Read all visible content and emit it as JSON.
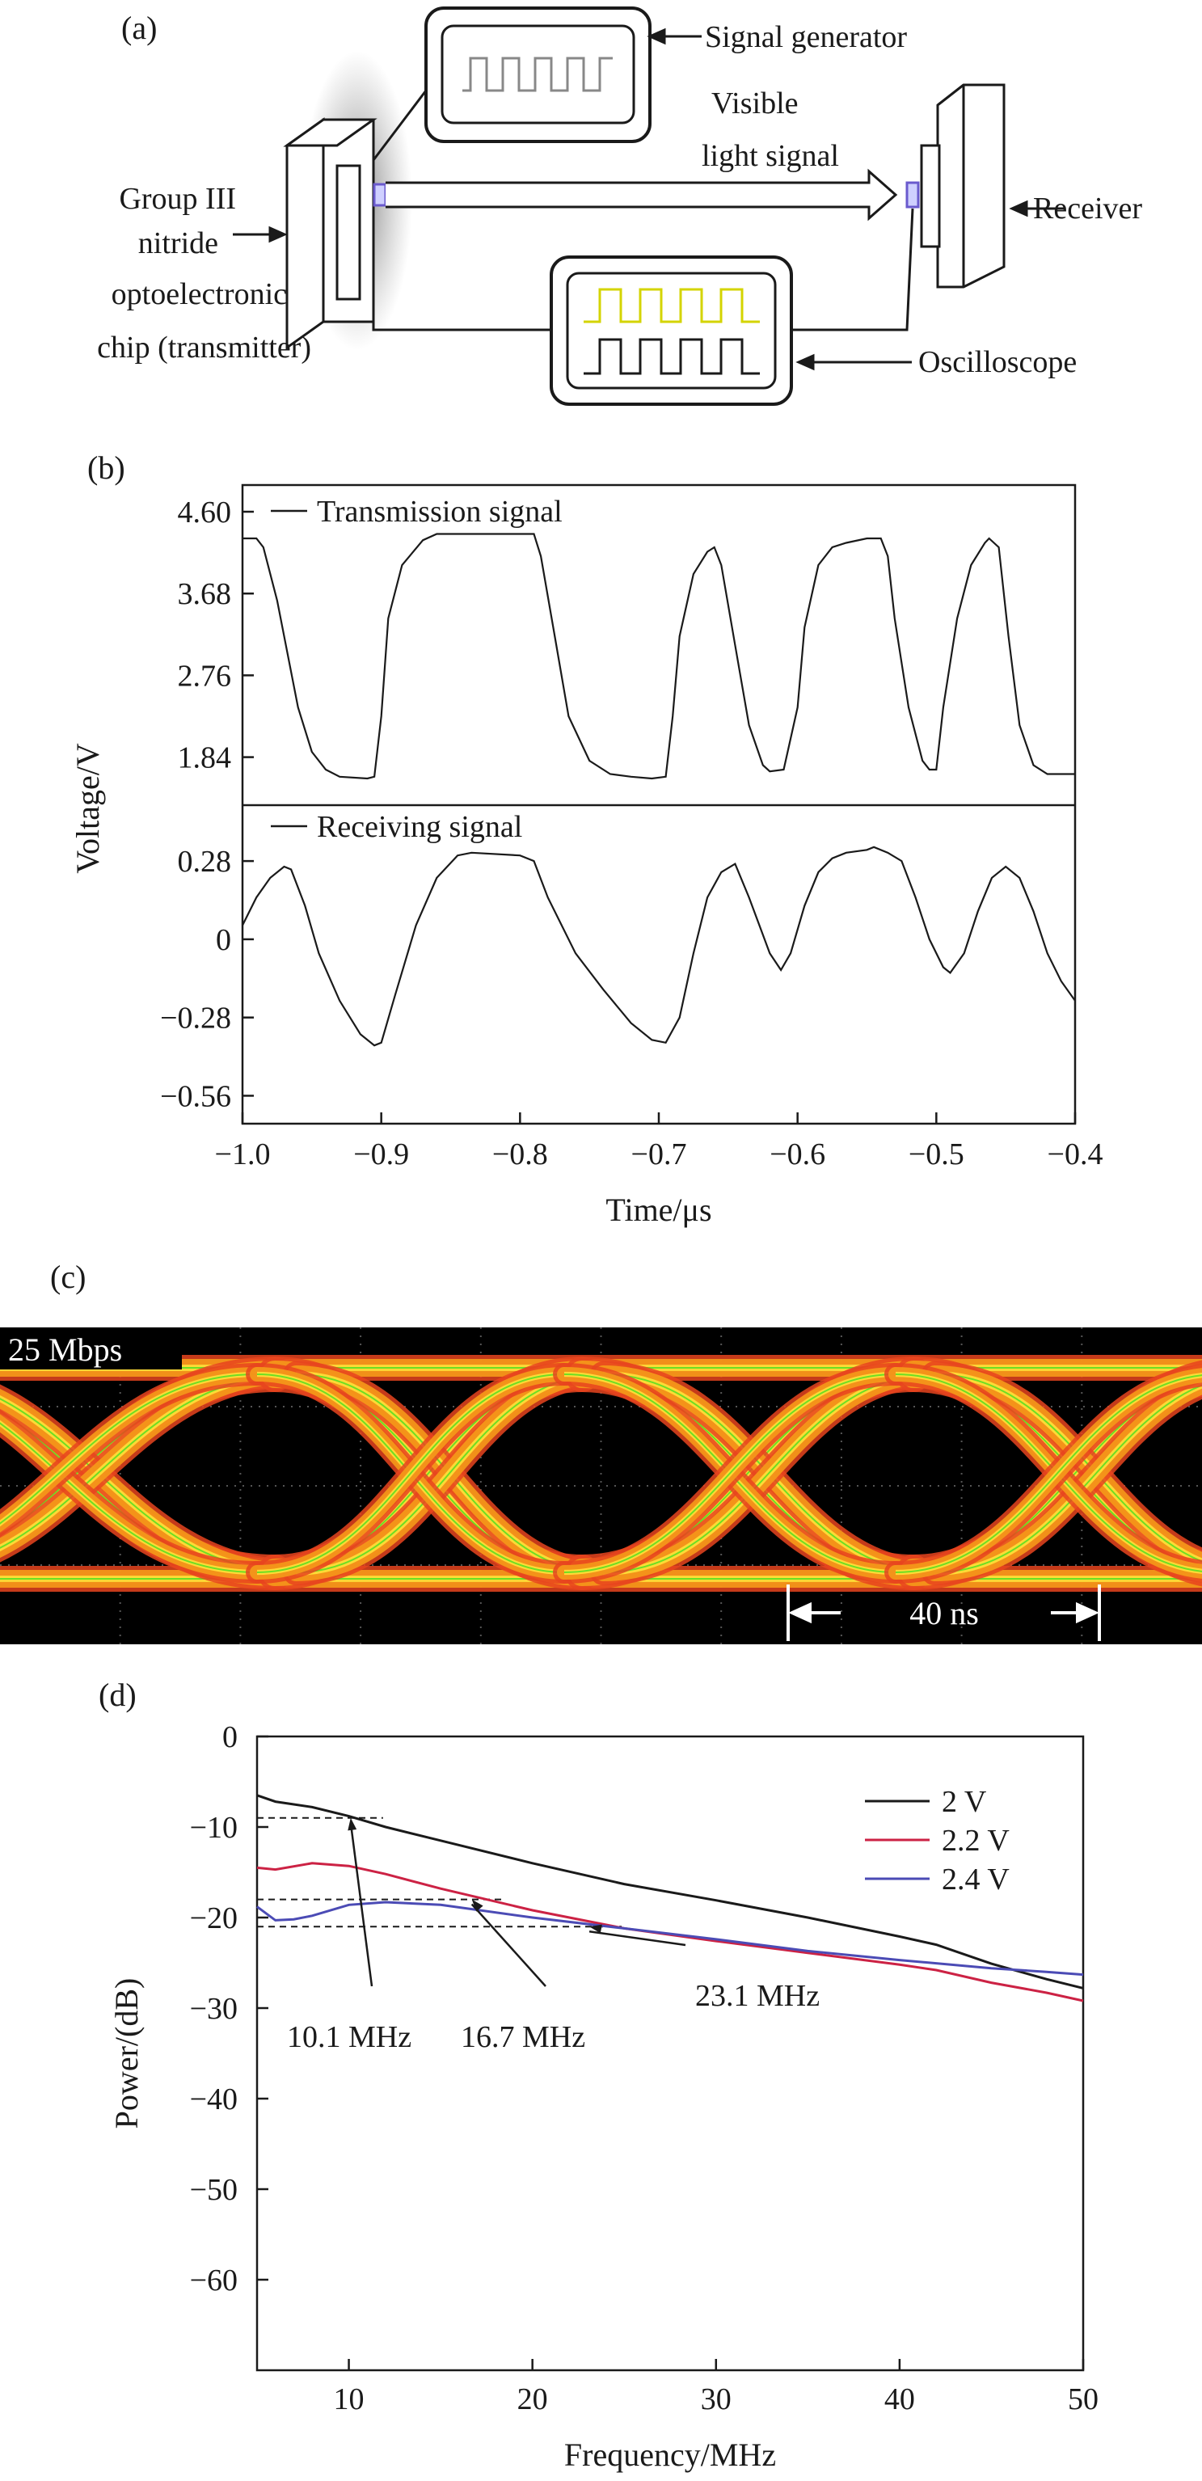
{
  "panel_a": {
    "label": "(a)",
    "signal_generator": "Signal generator",
    "visible_light_line1": "Visible",
    "visible_light_line2": "light signal",
    "receiver": "Receiver",
    "chip_line1": "Group III",
    "chip_line2": "nitride",
    "chip_line3": "optoelectronic",
    "chip_line4": "chip (transmitter)",
    "oscilloscope": "Oscilloscope",
    "colors": {
      "line": "#1a1a1a",
      "led": "#6a5acd",
      "trace_yellow": "#d4d400"
    }
  },
  "chart_data": [
    {
      "type": "line",
      "panel_label": "(b)",
      "xlabel": "Time/μs",
      "ylabel": "Voltage/V",
      "xlim": [
        -1.0,
        -0.4
      ],
      "x_ticks": [
        "−1.0",
        "−0.9",
        "−0.8",
        "−0.7",
        "−0.6",
        "−0.5",
        "−0.4"
      ],
      "subplots": [
        {
          "legend": "Transmission signal",
          "ylim": [
            1.3,
            4.9
          ],
          "y_ticks": [
            "4.60",
            "3.68",
            "2.76",
            "1.84"
          ],
          "y_tick_values": [
            4.6,
            3.68,
            2.76,
            1.84
          ],
          "series": [
            {
              "name": "Transmission signal",
              "x": [
                -1.0,
                -0.99,
                -0.985,
                -0.975,
                -0.96,
                -0.95,
                -0.94,
                -0.93,
                -0.91,
                -0.905,
                -0.9,
                -0.895,
                -0.885,
                -0.87,
                -0.86,
                -0.84,
                -0.8,
                -0.79,
                -0.785,
                -0.775,
                -0.765,
                -0.75,
                -0.735,
                -0.72,
                -0.705,
                -0.695,
                -0.69,
                -0.685,
                -0.675,
                -0.665,
                -0.66,
                -0.655,
                -0.645,
                -0.635,
                -0.625,
                -0.62,
                -0.61,
                -0.6,
                -0.595,
                -0.585,
                -0.575,
                -0.565,
                -0.55,
                -0.54,
                -0.535,
                -0.53,
                -0.52,
                -0.51,
                -0.505,
                -0.5,
                -0.495,
                -0.485,
                -0.475,
                -0.465,
                -0.462,
                -0.455,
                -0.448,
                -0.44,
                -0.43,
                -0.42,
                -0.41,
                -0.4
              ],
              "values": [
                4.3,
                4.3,
                4.2,
                3.6,
                2.4,
                1.9,
                1.7,
                1.62,
                1.6,
                1.62,
                2.3,
                3.4,
                4.0,
                4.28,
                4.35,
                4.35,
                4.35,
                4.35,
                4.1,
                3.2,
                2.3,
                1.8,
                1.65,
                1.62,
                1.6,
                1.62,
                2.3,
                3.2,
                3.9,
                4.15,
                4.2,
                4.0,
                3.1,
                2.2,
                1.75,
                1.68,
                1.7,
                2.4,
                3.3,
                4.0,
                4.2,
                4.25,
                4.3,
                4.3,
                4.1,
                3.4,
                2.4,
                1.8,
                1.7,
                1.7,
                2.4,
                3.4,
                4.0,
                4.25,
                4.3,
                4.2,
                3.2,
                2.2,
                1.75,
                1.65,
                1.65,
                1.65
              ],
              "color": "#1a1a1a"
            }
          ]
        },
        {
          "legend": "Receiving signal",
          "ylim": [
            -0.66,
            0.48
          ],
          "y_ticks": [
            "0.28",
            "0",
            "−0.28",
            "−0.56"
          ],
          "y_tick_values": [
            0.28,
            0,
            -0.28,
            -0.56
          ],
          "series": [
            {
              "name": "Receiving signal",
              "x": [
                -1.0,
                -0.99,
                -0.98,
                -0.97,
                -0.965,
                -0.955,
                -0.945,
                -0.93,
                -0.915,
                -0.905,
                -0.9,
                -0.89,
                -0.875,
                -0.86,
                -0.845,
                -0.835,
                -0.8,
                -0.79,
                -0.78,
                -0.76,
                -0.74,
                -0.72,
                -0.705,
                -0.695,
                -0.685,
                -0.675,
                -0.665,
                -0.655,
                -0.645,
                -0.635,
                -0.62,
                -0.612,
                -0.605,
                -0.595,
                -0.585,
                -0.575,
                -0.565,
                -0.55,
                -0.545,
                -0.535,
                -0.525,
                -0.515,
                -0.505,
                -0.495,
                -0.49,
                -0.48,
                -0.47,
                -0.46,
                -0.45,
                -0.44,
                -0.43,
                -0.42,
                -0.41,
                -0.4
              ],
              "values": [
                0.05,
                0.15,
                0.22,
                0.26,
                0.25,
                0.12,
                -0.05,
                -0.22,
                -0.34,
                -0.38,
                -0.37,
                -0.2,
                0.05,
                0.22,
                0.3,
                0.31,
                0.3,
                0.28,
                0.15,
                -0.05,
                -0.18,
                -0.3,
                -0.36,
                -0.37,
                -0.28,
                -0.05,
                0.15,
                0.24,
                0.27,
                0.15,
                -0.05,
                -0.11,
                -0.05,
                0.12,
                0.24,
                0.29,
                0.31,
                0.32,
                0.33,
                0.31,
                0.28,
                0.15,
                0.0,
                -0.1,
                -0.12,
                -0.05,
                0.1,
                0.22,
                0.26,
                0.22,
                0.1,
                -0.05,
                -0.15,
                -0.22
              ],
              "color": "#1a1a1a"
            }
          ]
        }
      ]
    },
    {
      "type": "heatmap",
      "panel_label": "(c)",
      "title": "25 Mbps",
      "annotation": "40 ns",
      "colors": {
        "background": "#000000",
        "grid": "#555555",
        "outer": "#e8441f",
        "mid": "#f59a1a",
        "inner": "#ffe23a",
        "core": "#3ce01f"
      }
    },
    {
      "type": "line",
      "panel_label": "(d)",
      "xlabel": "Frequency/MHz",
      "ylabel": "Power/(dB)",
      "xlim": [
        5,
        50
      ],
      "ylim": [
        -70,
        0
      ],
      "x_ticks": [
        10,
        20,
        30,
        40,
        50
      ],
      "y_ticks": [
        "0",
        "−10",
        "−20",
        "−30",
        "−40",
        "−50",
        "−60"
      ],
      "y_tick_values": [
        0,
        -10,
        -20,
        -30,
        -40,
        -50,
        -60
      ],
      "legend_position": "top-right",
      "series": [
        {
          "name": "2 V",
          "color": "#1a1a1a",
          "x": [
            5,
            6,
            8,
            10,
            12,
            15,
            20,
            25,
            30,
            35,
            40,
            42,
            45,
            48,
            50
          ],
          "values": [
            -6.5,
            -7.2,
            -7.8,
            -8.8,
            -10.0,
            -11.5,
            -14.0,
            -16.3,
            -18.1,
            -20.0,
            -22.1,
            -23.0,
            -25.1,
            -26.8,
            -27.8
          ]
        },
        {
          "name": "2.2 V",
          "color": "#cc2244",
          "x": [
            5,
            6,
            8,
            10,
            12,
            15,
            20,
            25,
            30,
            35,
            40,
            42,
            45,
            48,
            50
          ],
          "values": [
            -14.5,
            -14.7,
            -14.0,
            -14.3,
            -15.2,
            -16.8,
            -19.2,
            -21.2,
            -22.6,
            -23.9,
            -25.2,
            -25.8,
            -27.2,
            -28.3,
            -29.2
          ]
        },
        {
          "name": "2.4 V",
          "color": "#4b4bb5",
          "x": [
            5,
            6,
            7,
            8,
            10,
            12,
            15,
            20,
            25,
            30,
            35,
            40,
            45,
            48,
            50
          ],
          "values": [
            -18.8,
            -20.3,
            -20.2,
            -19.8,
            -18.6,
            -18.3,
            -18.6,
            -20.0,
            -21.2,
            -22.4,
            -23.7,
            -24.7,
            -25.6,
            -26.0,
            -26.3
          ]
        }
      ],
      "reference_lines": [
        {
          "y": -9,
          "x_end": 10.1
        },
        {
          "y": -18,
          "x_end": 16.7
        },
        {
          "y": -21,
          "x_end": 23.1
        }
      ],
      "annotations": [
        {
          "label": "10.1 MHz",
          "x": 10.1,
          "y": -9
        },
        {
          "label": "16.7 MHz",
          "x": 16.7,
          "y": -18
        },
        {
          "label": "23.1 MHz",
          "x": 23.1,
          "y": -21
        }
      ]
    }
  ]
}
